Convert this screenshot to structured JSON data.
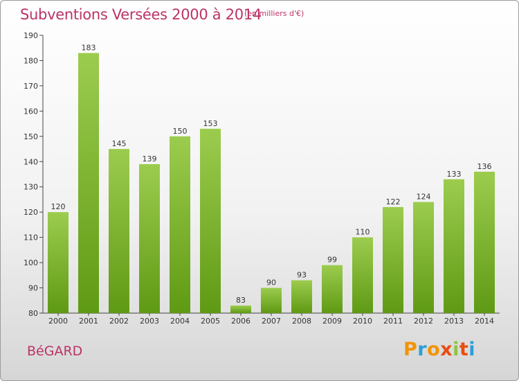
{
  "header": {
    "title": "Subventions Versées 2000 à 2014",
    "unit": "(en milliers d'€)"
  },
  "commune": "BéGARD",
  "logo": {
    "letters": [
      "P",
      "r",
      "o",
      "x",
      "i",
      "t",
      "i"
    ],
    "colors": [
      "#f29400",
      "#2a9fd8",
      "#f29400",
      "#e84e0f",
      "#8cc63f",
      "#e84e0f",
      "#2a9fd8"
    ]
  },
  "colors": {
    "bar_light": "#9ccc4e",
    "bar_dark": "#5f9a14",
    "title": "#bb3366"
  },
  "chart_data": {
    "type": "bar",
    "title": "Subventions Versées 2000 à 2014",
    "xlabel": "",
    "ylabel": "",
    "categories": [
      "2000",
      "2001",
      "2002",
      "2003",
      "2004",
      "2005",
      "2006",
      "2007",
      "2008",
      "2009",
      "2010",
      "2011",
      "2012",
      "2013",
      "2014"
    ],
    "values": [
      120,
      183,
      145,
      139,
      150,
      153,
      83,
      90,
      93,
      99,
      110,
      122,
      124,
      133,
      136
    ],
    "ylim": [
      80,
      190
    ],
    "yticks": [
      80,
      90,
      100,
      110,
      120,
      130,
      140,
      150,
      160,
      170,
      180,
      190
    ],
    "grid": false,
    "data_labels": true,
    "legend": "none"
  }
}
